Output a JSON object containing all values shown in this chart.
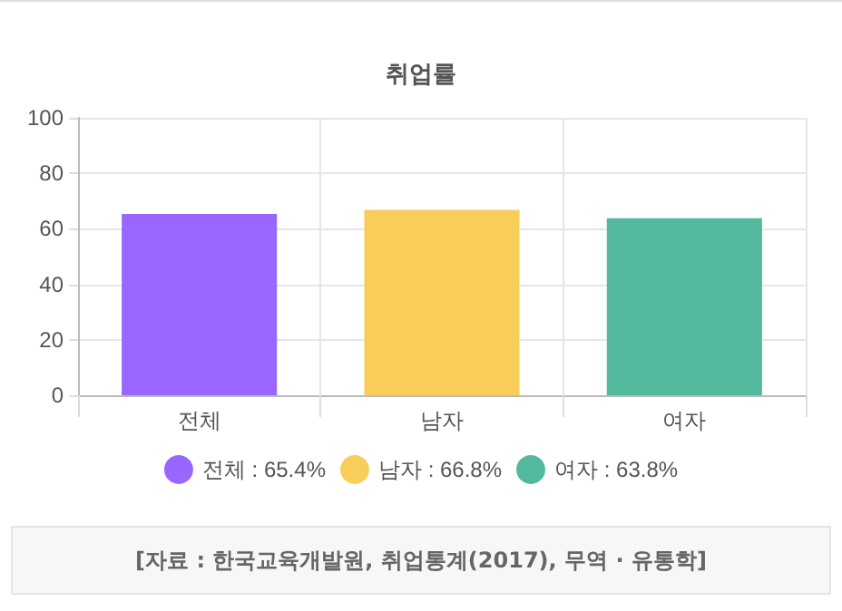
{
  "chart_data": {
    "type": "bar",
    "title": "취업률",
    "categories": [
      "전체",
      "남자",
      "여자"
    ],
    "series": [
      {
        "name": "전체 : 65.4%",
        "color": "#9966ff",
        "values": [
          65.4,
          null,
          null
        ]
      },
      {
        "name": "남자 : 66.8%",
        "color": "#f9cd5a",
        "values": [
          null,
          66.8,
          null
        ]
      },
      {
        "name": "여자 : 63.8%",
        "color": "#52b99f",
        "values": [
          null,
          null,
          63.8
        ]
      }
    ],
    "ylim": [
      0,
      100
    ],
    "yticks": [
      0,
      20,
      40,
      60,
      80,
      100
    ],
    "grid": true,
    "legend": "bottom",
    "annotations": [
      "[자료 : 한국교육개발원, 취업통계(2017), 무역 · 유통학]"
    ]
  }
}
